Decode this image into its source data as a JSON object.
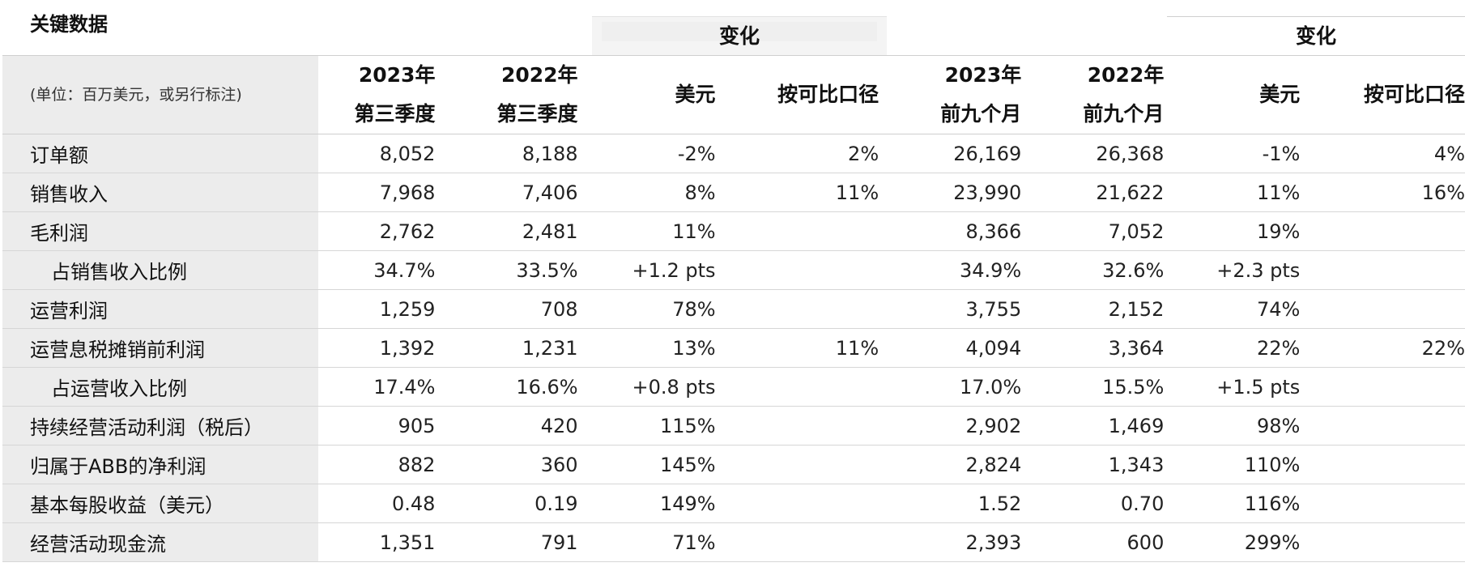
{
  "title": "关键数据",
  "change_header_quarter": "变化",
  "change_header_ytd": "变化",
  "unit_note": "(单位：百万美元，或另行标注)",
  "columns": [
    {
      "line1": "2023年",
      "line2": "第三季度"
    },
    {
      "line1": "2022年",
      "line2": "第三季度"
    },
    {
      "line1": "美元",
      "line2": ""
    },
    {
      "line1": "按可比口径",
      "line2": ""
    },
    {
      "line1": "2023年",
      "line2": "前九个月"
    },
    {
      "line1": "2022年",
      "line2": "前九个月"
    },
    {
      "line1": "美元",
      "line2": ""
    },
    {
      "line1": "按可比口径",
      "line2": ""
    }
  ],
  "rows": [
    {
      "label": "订单额",
      "values": [
        "8,052",
        "8,188",
        "-2%",
        "2%",
        "26,169",
        "26,368",
        "-1%",
        "4%"
      ]
    },
    {
      "label": "销售收入",
      "values": [
        "7,968",
        "7,406",
        "8%",
        "11%",
        "23,990",
        "21,622",
        "11%",
        "16%"
      ]
    },
    {
      "label": "毛利润",
      "values": [
        "2,762",
        "2,481",
        "11%",
        "",
        "8,366",
        "7,052",
        "19%",
        ""
      ]
    },
    {
      "label": "占销售收入比例",
      "values": [
        "34.7%",
        "33.5%",
        "+1.2 pts",
        "",
        "34.9%",
        "32.6%",
        "+2.3 pts",
        ""
      ]
    },
    {
      "label": "运营利润",
      "values": [
        "1,259",
        "708",
        "78%",
        "",
        "3,755",
        "2,152",
        "74%",
        ""
      ]
    },
    {
      "label": "运营息税摊销前利润",
      "values": [
        "1,392",
        "1,231",
        "13%",
        "11%",
        "4,094",
        "3,364",
        "22%",
        "22%"
      ]
    },
    {
      "label": "占运营收入比例",
      "values": [
        "17.4%",
        "16.6%",
        "+0.8 pts",
        "",
        "17.0%",
        "15.5%",
        "+1.5 pts",
        ""
      ]
    },
    {
      "label": "持续经营活动利润（税后）",
      "values": [
        "905",
        "420",
        "115%",
        "",
        "2,902",
        "1,469",
        "98%",
        ""
      ]
    },
    {
      "label": "归属于ABB的净利润",
      "values": [
        "882",
        "360",
        "145%",
        "",
        "2,824",
        "1,343",
        "110%",
        ""
      ]
    },
    {
      "label": "基本每股收益（美元）",
      "values": [
        "0.48",
        "0.19",
        "149%",
        "",
        "1.52",
        "0.70",
        "116%",
        ""
      ]
    },
    {
      "label": "经营活动现金流",
      "values": [
        "1,351",
        "791",
        "71%",
        "",
        "2,393",
        "600",
        "299%",
        ""
      ]
    }
  ]
}
